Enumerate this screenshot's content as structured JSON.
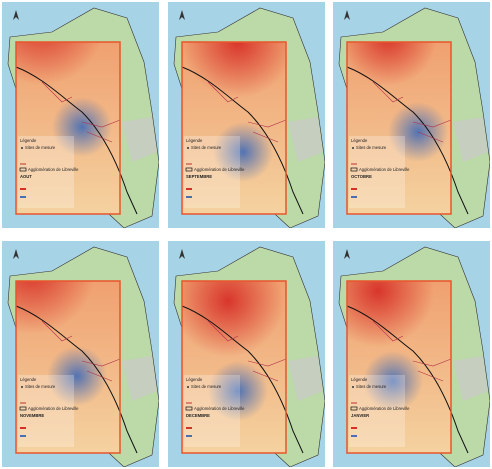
{
  "legend": {
    "title": "Légende",
    "sites": "Sites de mesure",
    "agglomeration": "Agglomération de Libreville"
  },
  "panels": [
    {
      "month": "AOUT"
    },
    {
      "month": "SEPTEMBRE"
    },
    {
      "month": "OCTOBRE"
    },
    {
      "month": "NOVEMBRE"
    },
    {
      "month": "DECEMBRE"
    },
    {
      "month": "JANVIER"
    }
  ]
}
